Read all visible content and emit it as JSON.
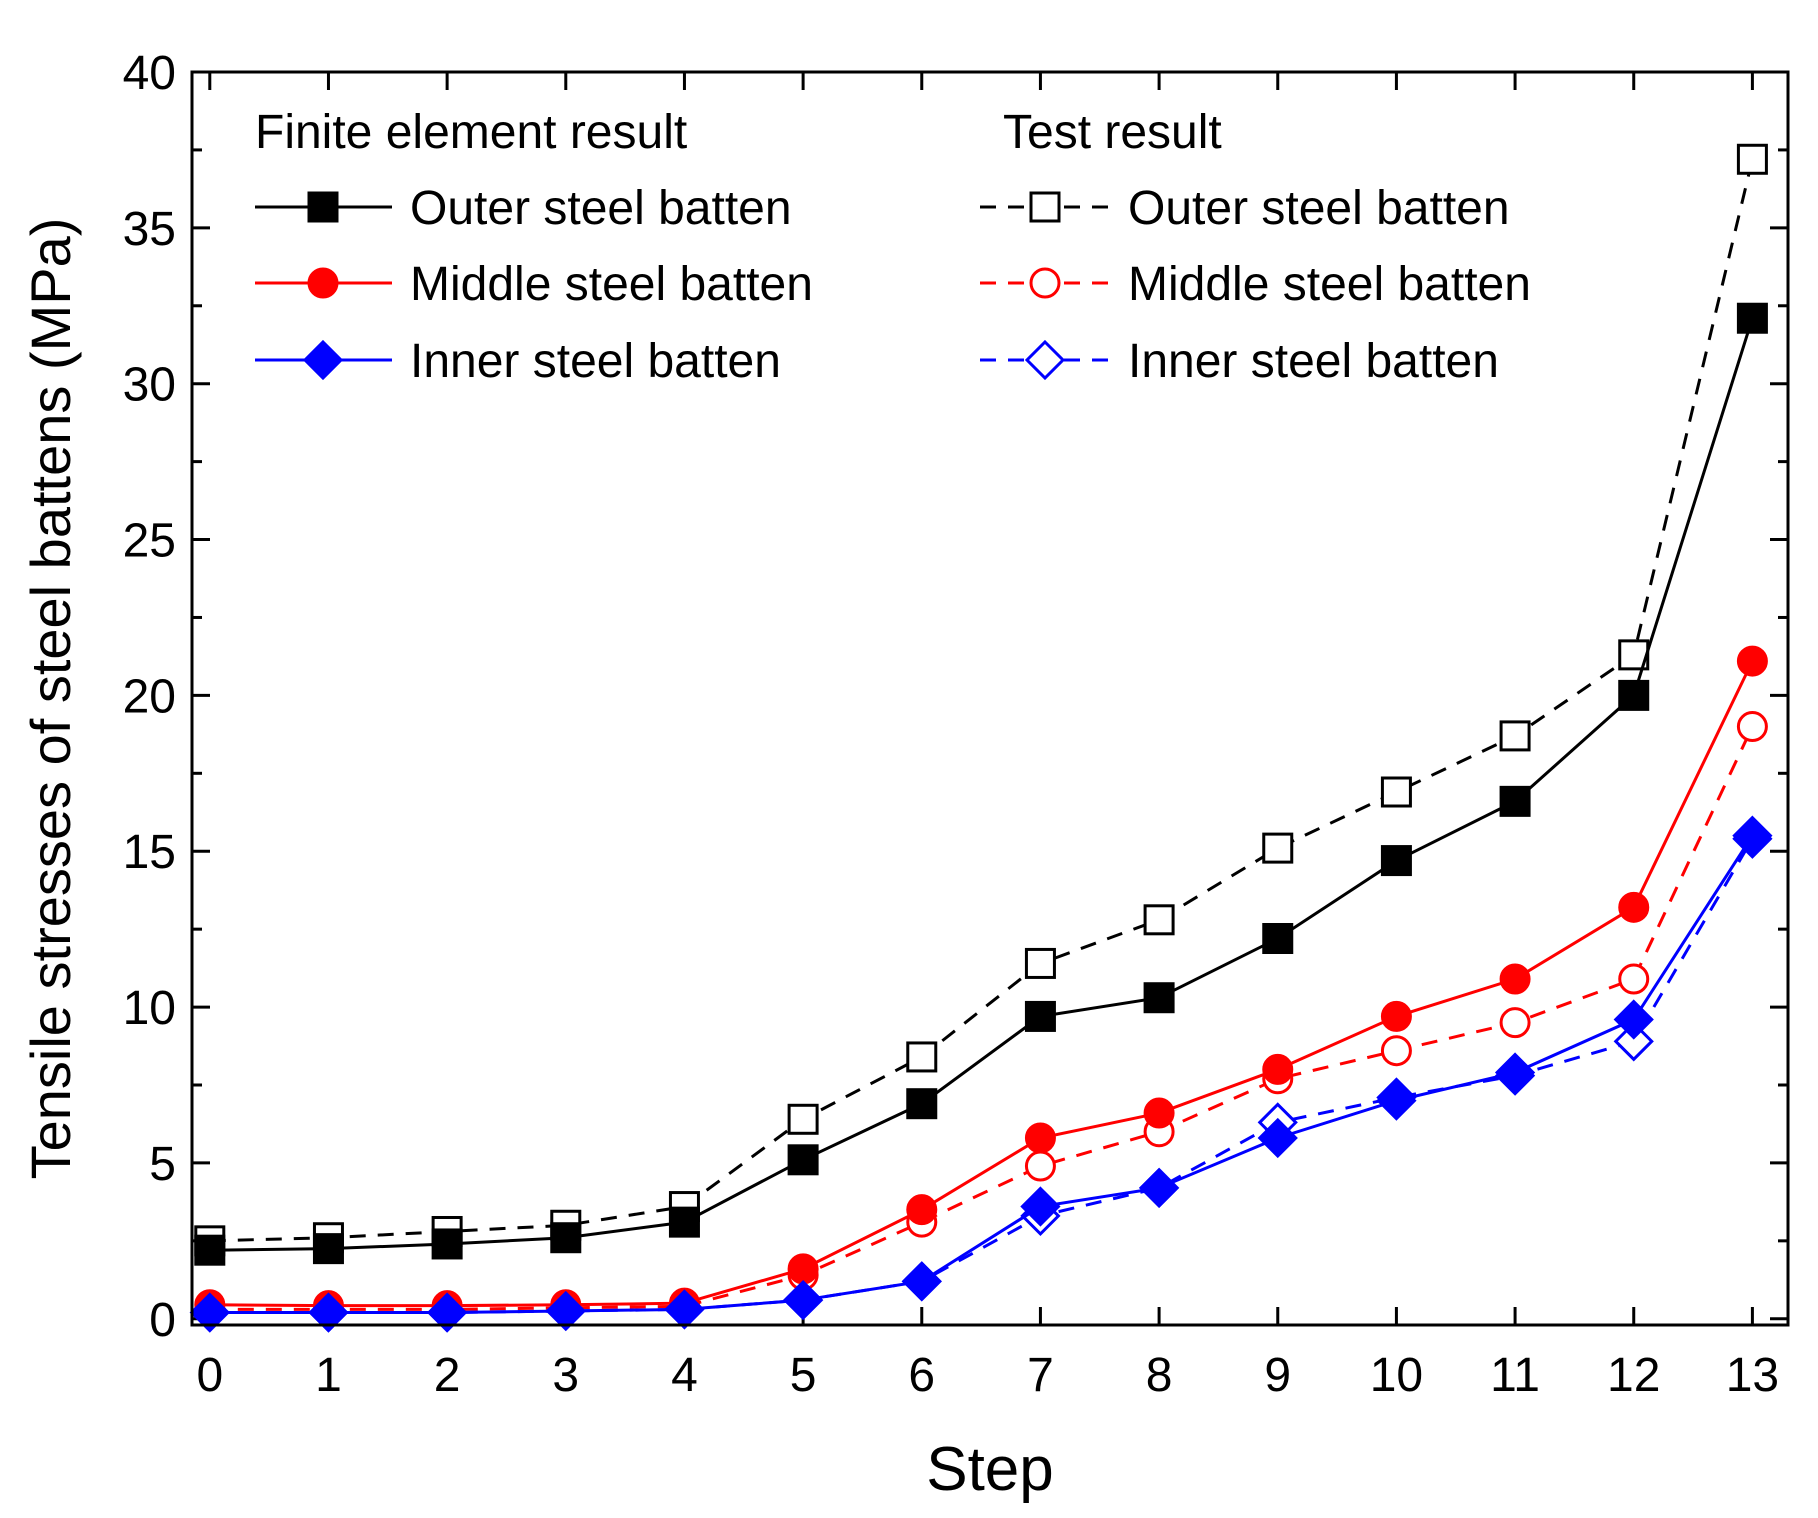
{
  "chart_data": {
    "type": "line",
    "title": "",
    "xlabel": "Step",
    "ylabel": "Tensile stresses of steel battens (MPa)",
    "xlim": [
      -0.15,
      13.3
    ],
    "ylim": [
      -0.2,
      40
    ],
    "x": [
      0,
      1,
      2,
      3,
      4,
      5,
      6,
      7,
      8,
      9,
      10,
      11,
      12,
      13
    ],
    "xticks": [
      0,
      1,
      2,
      3,
      4,
      5,
      6,
      7,
      8,
      9,
      10,
      11,
      12,
      13
    ],
    "yticks": [
      0,
      5,
      10,
      15,
      20,
      25,
      30,
      35,
      40
    ],
    "legend": {
      "position": "top-left",
      "group_fe": "Finite element result",
      "group_test": "Test result"
    },
    "series": [
      {
        "name": "Outer steel batten",
        "group": "Finite element result",
        "color": "#000000",
        "marker": "square",
        "filled": true,
        "dash": false,
        "values": [
          2.2,
          2.25,
          2.4,
          2.6,
          3.1,
          5.1,
          6.9,
          9.7,
          10.3,
          12.2,
          14.7,
          16.6,
          20.0,
          32.1
        ]
      },
      {
        "name": "Middle steel batten",
        "group": "Finite element result",
        "color": "#ff0000",
        "marker": "circle",
        "filled": true,
        "dash": false,
        "values": [
          0.45,
          0.42,
          0.42,
          0.45,
          0.5,
          1.6,
          3.5,
          5.8,
          6.6,
          8.0,
          9.7,
          10.9,
          13.2,
          21.1
        ]
      },
      {
        "name": "Inner steel batten",
        "group": "Finite element result",
        "color": "#0000ff",
        "marker": "diamond",
        "filled": true,
        "dash": false,
        "values": [
          0.2,
          0.2,
          0.2,
          0.25,
          0.3,
          0.6,
          1.2,
          3.6,
          4.2,
          5.8,
          7.0,
          7.9,
          9.6,
          15.5
        ]
      },
      {
        "name": "Outer steel batten",
        "group": "Test result",
        "color": "#000000",
        "marker": "square",
        "filled": false,
        "dash": true,
        "values": [
          2.5,
          2.6,
          2.8,
          3.0,
          3.6,
          6.4,
          8.4,
          11.4,
          12.8,
          15.1,
          16.9,
          18.7,
          21.3,
          37.2
        ]
      },
      {
        "name": "Middle steel batten",
        "group": "Test result",
        "color": "#ff0000",
        "marker": "circle",
        "filled": false,
        "dash": true,
        "values": [
          0.3,
          0.3,
          0.3,
          0.35,
          0.4,
          1.4,
          3.1,
          4.9,
          6.0,
          7.7,
          8.6,
          9.5,
          10.9,
          19.0
        ]
      },
      {
        "name": "Inner steel batten",
        "group": "Test result",
        "color": "#0000ff",
        "marker": "diamond",
        "filled": false,
        "dash": true,
        "values": [
          0.2,
          0.2,
          0.2,
          0.25,
          0.3,
          0.6,
          1.2,
          3.3,
          4.2,
          6.3,
          7.1,
          7.8,
          8.9,
          15.4
        ]
      }
    ]
  }
}
